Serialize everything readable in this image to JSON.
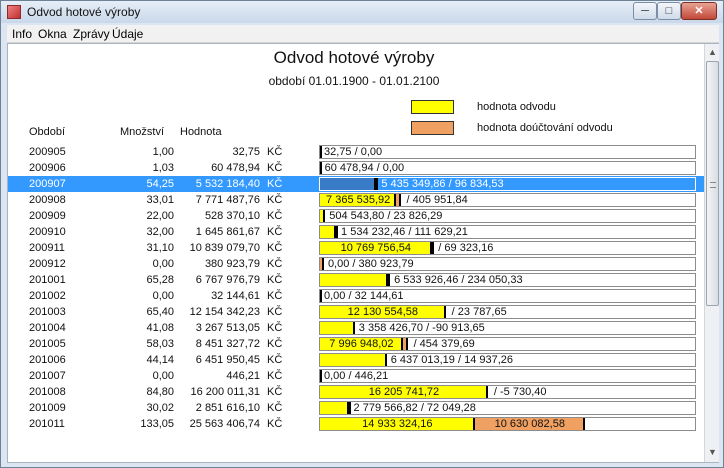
{
  "window": {
    "title": "Odvod hotové výroby",
    "buttons": {
      "minimize": "─",
      "maximize": "□",
      "close": "✕"
    }
  },
  "menu": [
    "Info",
    "Okna",
    "Zprávy",
    "Údaje"
  ],
  "report": {
    "title": "Odvod hotové výroby",
    "period": "období 01.01.1900 - 01.01.2100"
  },
  "legend": {
    "odvod": {
      "label": "hodnota odvodu",
      "color": "#ffff00"
    },
    "doucovani": {
      "label": "hodnota doúčtování odvodu",
      "color": "#f0a060"
    }
  },
  "columns": {
    "period": "Období",
    "quantity": "Množství",
    "value": "Hodnota"
  },
  "scale_max": 36193489,
  "selected_row": "200907",
  "rows": [
    {
      "period": "200905",
      "quantity": "1,00",
      "value": "32,75",
      "currency": "KČ",
      "main": 32.75,
      "extra": 0,
      "label": "32,75 / 0,00",
      "split": false
    },
    {
      "period": "200906",
      "quantity": "1,03",
      "value": "60 478,94",
      "currency": "KČ",
      "main": 60478.94,
      "extra": 0,
      "label": "60 478,94 / 0,00",
      "split": false
    },
    {
      "period": "200907",
      "quantity": "54,25",
      "value": "5 532 184,40",
      "currency": "KČ",
      "main": 5435349.86,
      "extra": 96834.53,
      "label": "5 435 349,86 / 96 834,53",
      "split": false
    },
    {
      "period": "200908",
      "quantity": "33,01",
      "value": "7 771 487,76",
      "currency": "KČ",
      "main": 7365535.92,
      "extra": 405951.84,
      "label_main": "7 365 535,92",
      "label_extra": "/ 405 951,84",
      "split": true
    },
    {
      "period": "200909",
      "quantity": "22,00",
      "value": "528 370,10",
      "currency": "KČ",
      "main": 504543.8,
      "extra": 23826.29,
      "label": "504 543,80 / 23 826,29",
      "split": false
    },
    {
      "period": "200910",
      "quantity": "32,00",
      "value": "1 645 861,67",
      "currency": "KČ",
      "main": 1534232.46,
      "extra": 111629.21,
      "label": "1 534 232,46 / 111 629,21",
      "split": false
    },
    {
      "period": "200911",
      "quantity": "31,10",
      "value": "10 839 079,70",
      "currency": "KČ",
      "main": 10769756.54,
      "extra": 69323.16,
      "label_main": "10 769 756,54",
      "label_extra": "/ 69 323,16",
      "split": true
    },
    {
      "period": "200912",
      "quantity": "0,00",
      "value": "380 923,79",
      "currency": "KČ",
      "main": 0,
      "extra": 380923.79,
      "label": "0,00 / 380 923,79",
      "split": false
    },
    {
      "period": "201001",
      "quantity": "65,28",
      "value": "6 767 976,79",
      "currency": "KČ",
      "main": 6533926.46,
      "extra": 234050.33,
      "label": "6 533 926,46 / 234 050,33",
      "split": false
    },
    {
      "period": "201002",
      "quantity": "0,00",
      "value": "32 144,61",
      "currency": "KČ",
      "main": 0,
      "extra": 32144.61,
      "label": "0,00 / 32 144,61",
      "split": false
    },
    {
      "period": "201003",
      "quantity": "65,40",
      "value": "12 154 342,23",
      "currency": "KČ",
      "main": 12130554.58,
      "extra": 23787.65,
      "label_main": "12 130 554,58",
      "label_extra": "/ 23 787,65",
      "split": true
    },
    {
      "period": "201004",
      "quantity": "41,08",
      "value": "3 267 513,05",
      "currency": "KČ",
      "main": 3358426.7,
      "extra": -90913.65,
      "label": "3 358 426,70 / -90 913,65",
      "split": false
    },
    {
      "period": "201005",
      "quantity": "58,03",
      "value": "8 451 327,72",
      "currency": "KČ",
      "main": 7996948.02,
      "extra": 454379.69,
      "label_main": "7 996 948,02",
      "label_extra": "/ 454 379,69",
      "split": true
    },
    {
      "period": "201006",
      "quantity": "44,14",
      "value": "6 451 950,45",
      "currency": "KČ",
      "main": 6437013.19,
      "extra": 14937.26,
      "label": "6 437 013,19 / 14 937,26",
      "split": false
    },
    {
      "period": "201007",
      "quantity": "0,00",
      "value": "446,21",
      "currency": "KČ",
      "main": 0,
      "extra": 446.21,
      "label": "0,00 / 446,21",
      "split": false
    },
    {
      "period": "201008",
      "quantity": "84,80",
      "value": "16 200 011,31",
      "currency": "KČ",
      "main": 16205741.72,
      "extra": -5730.4,
      "label_main": "16 205 741,72",
      "label_extra": "/ -5 730,40",
      "split": true
    },
    {
      "period": "201009",
      "quantity": "30,02",
      "value": "2 851 616,10",
      "currency": "KČ",
      "main": 2779566.82,
      "extra": 72049.28,
      "label": "2 779 566,82 / 72 049,28",
      "split": false
    },
    {
      "period": "201011",
      "quantity": "133,05",
      "value": "25 563 406,74",
      "currency": "KČ",
      "main": 14933324.16,
      "extra": 10630082.58,
      "label_main": "14 933 324,16",
      "label_extra": "10 630 082,58",
      "split": true,
      "extra_inside": true
    }
  ]
}
